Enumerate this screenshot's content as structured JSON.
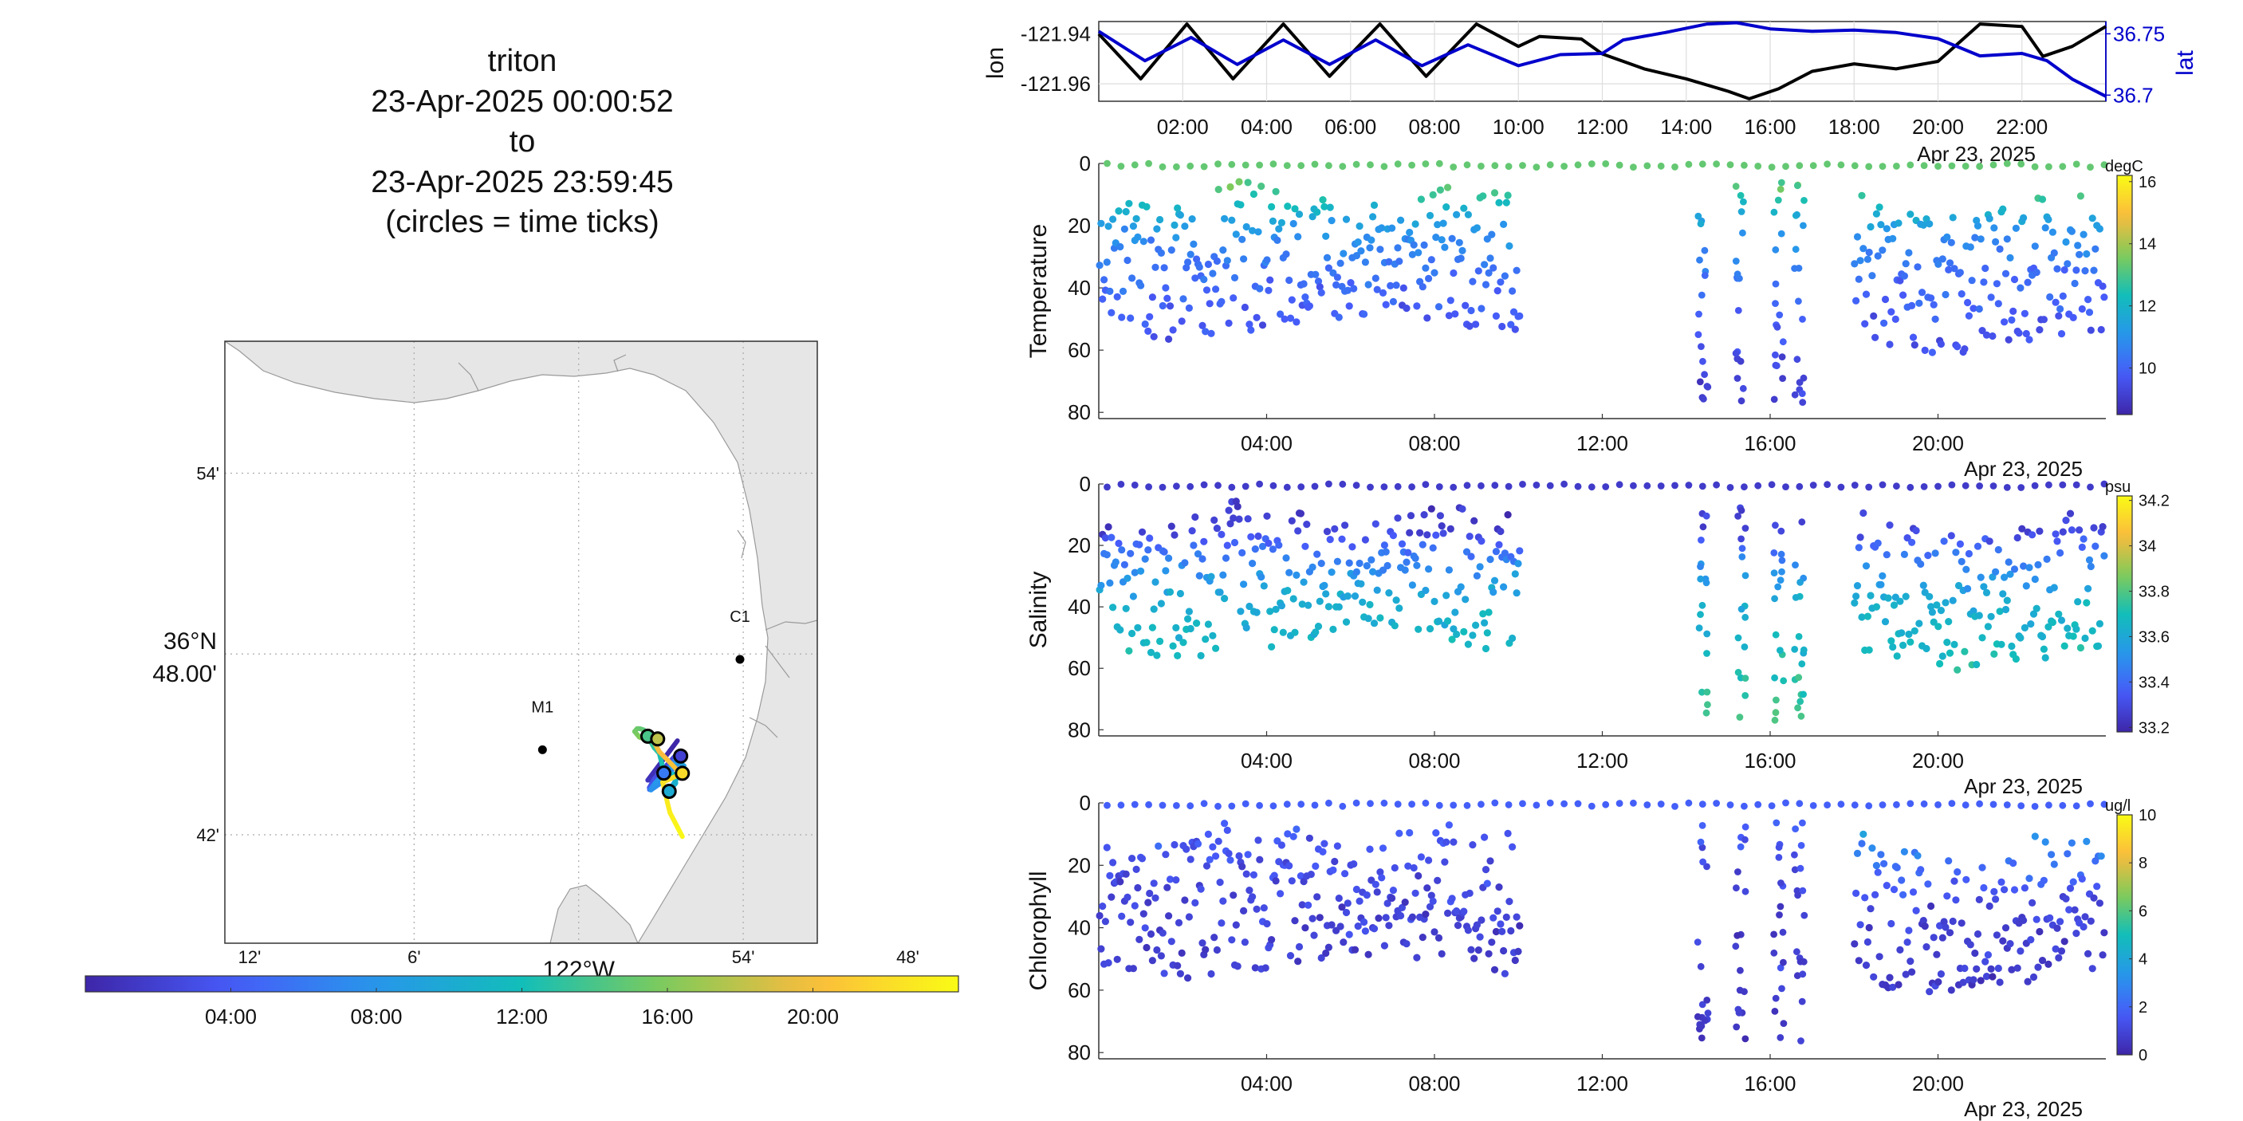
{
  "title": {
    "lines": [
      "triton",
      "23-Apr-2025 00:00:52",
      "to",
      "23-Apr-2025 23:59:45",
      "(circles = time ticks)"
    ]
  },
  "map": {
    "lat_ticks": [
      "54'",
      "36°N 48.00'",
      "42'"
    ],
    "lon_ticks": [
      "12'",
      "6'",
      "122°W",
      "54'",
      "48'"
    ],
    "stations": [
      {
        "name": "M1",
        "lon": -122.022,
        "lat": 36.747
      },
      {
        "name": "C1",
        "lon": -121.902,
        "lat": 36.797
      }
    ],
    "land_color": "#e6e6e6",
    "colorbar_ticks": [
      "04:00",
      "08:00",
      "12:00",
      "16:00",
      "20:00"
    ],
    "colormap": "parula"
  },
  "chart_data": [
    {
      "type": "line",
      "title": "",
      "xlabel": "Apr 23, 2025",
      "x_ticks": [
        "02:00",
        "04:00",
        "06:00",
        "08:00",
        "10:00",
        "12:00",
        "14:00",
        "16:00",
        "18:00",
        "20:00",
        "22:00"
      ],
      "xlim_hours": [
        0,
        24
      ],
      "grid": true,
      "axes": [
        {
          "label": "lon",
          "side": "left",
          "color": "#000000",
          "ticks": [
            "-121.94",
            "-121.96"
          ],
          "ylim": [
            -121.967,
            -121.935
          ]
        },
        {
          "label": "lat",
          "side": "right",
          "color": "#0000cc",
          "ticks": [
            "36.75",
            "36.7"
          ],
          "ylim": [
            36.695,
            36.76
          ]
        }
      ],
      "series": [
        {
          "name": "lon",
          "axis": "lon",
          "color": "#000000",
          "x": [
            0,
            1.0,
            2.1,
            3.2,
            4.4,
            5.5,
            6.7,
            7.8,
            9.0,
            10.0,
            10.5,
            11.5,
            12.0,
            13.0,
            14.0,
            15.0,
            15.5,
            16.2,
            17.0,
            18.0,
            19.0,
            20.0,
            21.0,
            22.0,
            22.5,
            23.2,
            24.0
          ],
          "y": [
            -121.94,
            -121.958,
            -121.936,
            -121.958,
            -121.936,
            -121.957,
            -121.936,
            -121.957,
            -121.936,
            -121.945,
            -121.941,
            -121.942,
            -121.948,
            -121.954,
            -121.958,
            -121.963,
            -121.966,
            -121.962,
            -121.955,
            -121.952,
            -121.954,
            -121.951,
            -121.936,
            -121.937,
            -121.949,
            -121.945,
            -121.937
          ]
        },
        {
          "name": "lat",
          "axis": "lat",
          "color": "#0000cc",
          "x": [
            0,
            1.1,
            2.2,
            3.3,
            4.4,
            5.5,
            6.6,
            7.7,
            8.8,
            10.0,
            11.0,
            12.0,
            12.5,
            13.5,
            14.5,
            15.2,
            16.0,
            17.0,
            18.0,
            19.0,
            20.0,
            21.0,
            22.0,
            22.6,
            23.2,
            24.0
          ],
          "y": [
            36.752,
            36.728,
            36.747,
            36.725,
            36.745,
            36.725,
            36.745,
            36.724,
            36.741,
            36.724,
            36.733,
            36.734,
            36.745,
            36.751,
            36.758,
            36.759,
            36.754,
            36.752,
            36.753,
            36.751,
            36.746,
            36.732,
            36.734,
            36.728,
            36.713,
            36.699
          ]
        }
      ]
    },
    {
      "type": "scatter",
      "ylabel": "Temperature",
      "units": "degC",
      "clim": [
        8.5,
        16.2
      ],
      "cbar_ticks": [
        10,
        12,
        14,
        16
      ],
      "ylim": [
        82,
        0
      ],
      "y_ticks": [
        0,
        20,
        40,
        60,
        80
      ],
      "x_ticks": [
        "04:00",
        "08:00",
        "12:00",
        "16:00",
        "20:00"
      ],
      "xlabel": "Apr 23, 2025",
      "bands": [
        {
          "depth": 7,
          "value": 13.3
        },
        {
          "depth": 14,
          "value": 12.0
        },
        {
          "depth": 22,
          "value": 11.0
        },
        {
          "depth": 34,
          "value": 10.3
        },
        {
          "depth": 48,
          "value": 9.8
        },
        {
          "depth": 78,
          "value": 9.0
        }
      ]
    },
    {
      "type": "scatter",
      "ylabel": "Salinity",
      "units": "psu",
      "clim": [
        33.18,
        34.22
      ],
      "cbar_ticks": [
        33.2,
        33.4,
        33.6,
        33.8,
        34,
        34.2
      ],
      "ylim": [
        82,
        0
      ],
      "y_ticks": [
        0,
        20,
        40,
        60,
        80
      ],
      "x_ticks": [
        "04:00",
        "08:00",
        "12:00",
        "16:00",
        "20:00"
      ],
      "xlabel": "Apr 23, 2025",
      "bands": [
        {
          "depth": 8,
          "value": 33.25
        },
        {
          "depth": 15,
          "value": 33.28
        },
        {
          "depth": 24,
          "value": 33.45
        },
        {
          "depth": 38,
          "value": 33.62
        },
        {
          "depth": 52,
          "value": 33.66
        },
        {
          "depth": 78,
          "value": 33.8
        }
      ]
    },
    {
      "type": "scatter",
      "ylabel": "Chlorophyll",
      "units": "ug/l",
      "clim": [
        0,
        10
      ],
      "cbar_ticks": [
        0,
        2,
        4,
        6,
        8,
        10
      ],
      "ylim": [
        82,
        0
      ],
      "y_ticks": [
        0,
        20,
        40,
        60,
        80
      ],
      "x_ticks": [
        "04:00",
        "08:00",
        "12:00",
        "16:00",
        "20:00"
      ],
      "xlabel": "Apr 23, 2025",
      "bands": [
        {
          "depth": 5,
          "value": 1.8
        },
        {
          "depth": 15,
          "value": 1.4
        },
        {
          "depth": 30,
          "value": 1.0
        },
        {
          "depth": 50,
          "value": 0.8
        },
        {
          "depth": 78,
          "value": 0.6
        }
      ],
      "late_surface_value": 3.6
    }
  ]
}
